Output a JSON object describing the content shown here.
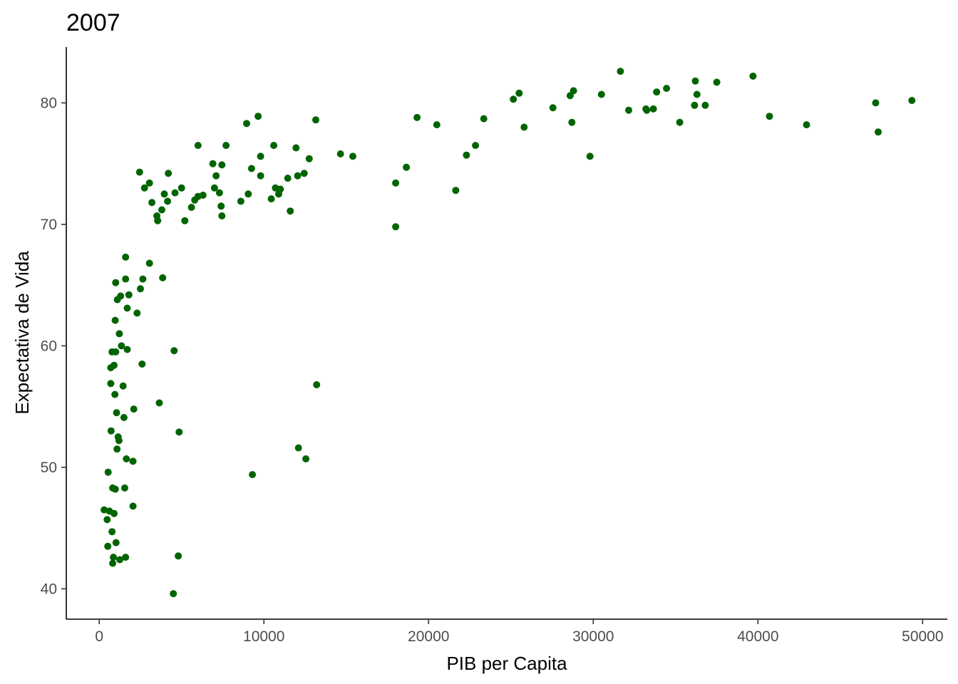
{
  "chart_data": {
    "type": "scatter",
    "title": "2007",
    "xlabel": "PIB per Capita",
    "ylabel": "Expectativa de Vida",
    "xlim": [
      -2000,
      51500
    ],
    "ylim": [
      37.5,
      84.6
    ],
    "xticks": [
      0,
      10000,
      20000,
      30000,
      40000,
      50000
    ],
    "xtick_labels": [
      "0",
      "10000",
      "20000",
      "30000",
      "40000",
      "50000"
    ],
    "yticks": [
      40,
      50,
      60,
      70,
      80
    ],
    "ytick_labels": [
      "40",
      "50",
      "60",
      "70",
      "80"
    ],
    "grid": false,
    "point_color": "#006400",
    "points": [
      [
        300,
        46.5
      ],
      [
        480,
        45.7
      ],
      [
        520,
        43.5
      ],
      [
        540,
        49.6
      ],
      [
        620,
        46.4
      ],
      [
        700,
        56.9
      ],
      [
        720,
        53.0
      ],
      [
        700,
        58.2
      ],
      [
        780,
        44.7
      ],
      [
        820,
        48.3
      ],
      [
        780,
        59.5
      ],
      [
        820,
        42.1
      ],
      [
        860,
        42.6
      ],
      [
        900,
        46.2
      ],
      [
        900,
        58.4
      ],
      [
        950,
        56.0
      ],
      [
        970,
        62.1
      ],
      [
        980,
        48.2
      ],
      [
        1000,
        59.5
      ],
      [
        1000,
        65.2
      ],
      [
        1020,
        43.8
      ],
      [
        1050,
        54.5
      ],
      [
        1080,
        51.5
      ],
      [
        1100,
        63.8
      ],
      [
        1150,
        52.5
      ],
      [
        1200,
        52.2
      ],
      [
        1220,
        61.0
      ],
      [
        1250,
        42.4
      ],
      [
        1300,
        64.1
      ],
      [
        1350,
        60.0
      ],
      [
        1450,
        56.7
      ],
      [
        1500,
        54.1
      ],
      [
        1550,
        48.3
      ],
      [
        1600,
        42.6
      ],
      [
        1600,
        67.3
      ],
      [
        1600,
        65.5
      ],
      [
        1700,
        63.1
      ],
      [
        1650,
        50.7
      ],
      [
        1700,
        59.7
      ],
      [
        1800,
        64.2
      ],
      [
        2050,
        46.8
      ],
      [
        2050,
        50.5
      ],
      [
        2100,
        54.8
      ],
      [
        2300,
        62.7
      ],
      [
        2450,
        74.3
      ],
      [
        2500,
        64.7
      ],
      [
        2600,
        58.5
      ],
      [
        2650,
        65.5
      ],
      [
        2750,
        73.0
      ],
      [
        3050,
        73.4
      ],
      [
        3050,
        66.8
      ],
      [
        3200,
        71.8
      ],
      [
        3500,
        70.7
      ],
      [
        3550,
        70.3
      ],
      [
        3650,
        55.3
      ],
      [
        3800,
        71.2
      ],
      [
        3850,
        65.6
      ],
      [
        3950,
        72.5
      ],
      [
        4150,
        71.9
      ],
      [
        4200,
        74.2
      ],
      [
        4500,
        39.6
      ],
      [
        4550,
        59.6
      ],
      [
        4600,
        72.6
      ],
      [
        4800,
        42.7
      ],
      [
        4850,
        52.9
      ],
      [
        5000,
        73.0
      ],
      [
        5200,
        70.3
      ],
      [
        5600,
        71.4
      ],
      [
        5800,
        72.0
      ],
      [
        6000,
        76.5
      ],
      [
        6000,
        72.3
      ],
      [
        6300,
        72.4
      ],
      [
        6900,
        75.0
      ],
      [
        7000,
        73.0
      ],
      [
        7100,
        74.0
      ],
      [
        7300,
        72.6
      ],
      [
        7400,
        71.5
      ],
      [
        7450,
        70.7
      ],
      [
        7450,
        74.9
      ],
      [
        7700,
        76.5
      ],
      [
        8600,
        71.9
      ],
      [
        8950,
        78.3
      ],
      [
        9050,
        72.5
      ],
      [
        9250,
        74.6
      ],
      [
        9300,
        49.4
      ],
      [
        9650,
        78.9
      ],
      [
        9800,
        75.6
      ],
      [
        9800,
        74.0
      ],
      [
        10450,
        72.1
      ],
      [
        10600,
        76.5
      ],
      [
        10700,
        73.0
      ],
      [
        10900,
        72.5
      ],
      [
        11000,
        72.9
      ],
      [
        11450,
        73.8
      ],
      [
        11600,
        71.1
      ],
      [
        11950,
        76.3
      ],
      [
        12050,
        74.0
      ],
      [
        12100,
        51.6
      ],
      [
        12450,
        74.2
      ],
      [
        12550,
        50.7
      ],
      [
        12750,
        75.4
      ],
      [
        13150,
        78.6
      ],
      [
        13200,
        56.8
      ],
      [
        14650,
        75.8
      ],
      [
        15400,
        75.6
      ],
      [
        18000,
        73.4
      ],
      [
        18000,
        69.8
      ],
      [
        18650,
        74.7
      ],
      [
        19300,
        78.8
      ],
      [
        20500,
        78.2
      ],
      [
        21650,
        72.8
      ],
      [
        22300,
        75.7
      ],
      [
        22850,
        76.5
      ],
      [
        23350,
        78.7
      ],
      [
        25150,
        80.3
      ],
      [
        25500,
        80.8
      ],
      [
        25800,
        78.0
      ],
      [
        27550,
        79.6
      ],
      [
        28600,
        80.6
      ],
      [
        28700,
        78.4
      ],
      [
        28800,
        81.0
      ],
      [
        29800,
        75.6
      ],
      [
        30500,
        80.7
      ],
      [
        31650,
        82.6
      ],
      [
        32150,
        79.4
      ],
      [
        33200,
        79.5
      ],
      [
        33250,
        79.4
      ],
      [
        33650,
        79.5
      ],
      [
        33850,
        80.9
      ],
      [
        34450,
        81.2
      ],
      [
        35250,
        78.4
      ],
      [
        36150,
        79.8
      ],
      [
        36200,
        81.8
      ],
      [
        36300,
        80.7
      ],
      [
        36800,
        79.8
      ],
      [
        37500,
        81.7
      ],
      [
        39700,
        82.2
      ],
      [
        40700,
        78.9
      ],
      [
        42950,
        78.2
      ],
      [
        47150,
        80.0
      ],
      [
        47300,
        77.6
      ],
      [
        49350,
        80.2
      ]
    ]
  }
}
